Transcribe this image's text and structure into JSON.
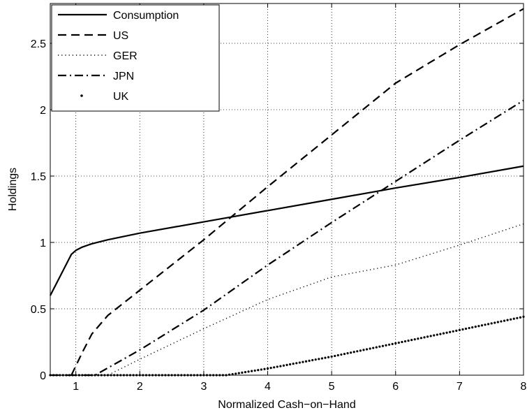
{
  "chart_data": {
    "type": "line",
    "xlabel": "Normalized Cash−on−Hand",
    "ylabel": "Holdings",
    "xlim": [
      0.6,
      8
    ],
    "ylim": [
      0,
      2.8
    ],
    "grid": true,
    "legend_position": "top-left",
    "x_ticks": [
      1,
      2,
      3,
      4,
      5,
      6,
      7,
      8
    ],
    "x_tick_labels": [
      "1",
      "2",
      "3",
      "4",
      "5",
      "6",
      "7",
      "8"
    ],
    "y_ticks": [
      0,
      0.5,
      1,
      1.5,
      2,
      2.5
    ],
    "y_tick_labels": [
      "0",
      "0.5",
      "1",
      "1.5",
      "2",
      "2.5"
    ],
    "series": [
      {
        "name": "Consumption",
        "style": "solid",
        "x": [
          0.6,
          0.93,
          1.0,
          1.1,
          1.25,
          1.5,
          2.0,
          3.0,
          4.0,
          5.0,
          6.0,
          7.0,
          8.0
        ],
        "y": [
          0.6,
          0.91,
          0.94,
          0.965,
          0.99,
          1.02,
          1.07,
          1.155,
          1.24,
          1.325,
          1.41,
          1.49,
          1.575
        ]
      },
      {
        "name": "US",
        "style": "dashed",
        "x": [
          0.93,
          1.0,
          1.1,
          1.25,
          1.5,
          2.0,
          3.0,
          4.0,
          5.0,
          6.0,
          7.0,
          8.0
        ],
        "y": [
          0.0,
          0.07,
          0.17,
          0.31,
          0.45,
          0.64,
          1.02,
          1.42,
          1.81,
          2.2,
          2.49,
          2.76
        ]
      },
      {
        "name": "GER",
        "style": "dotted",
        "x": [
          0.6,
          1.5,
          2.0,
          3.0,
          4.0,
          5.0,
          6.0,
          7.0,
          8.0
        ],
        "y": [
          0.0,
          0.0,
          0.12,
          0.35,
          0.57,
          0.74,
          0.83,
          0.98,
          1.14
        ]
      },
      {
        "name": "JPN",
        "style": "dash-dot",
        "x": [
          0.6,
          1.3,
          2.0,
          3.0,
          4.0,
          5.0,
          6.0,
          7.0,
          8.0
        ],
        "y": [
          0.0,
          0.0,
          0.19,
          0.49,
          0.83,
          1.15,
          1.46,
          1.77,
          2.07
        ]
      },
      {
        "name": "UK",
        "style": "dot-markers",
        "x": [
          0.6,
          3.35,
          4.0,
          5.0,
          6.0,
          7.0,
          8.0
        ],
        "y": [
          0.0,
          0.0,
          0.05,
          0.14,
          0.24,
          0.34,
          0.44
        ]
      }
    ]
  }
}
